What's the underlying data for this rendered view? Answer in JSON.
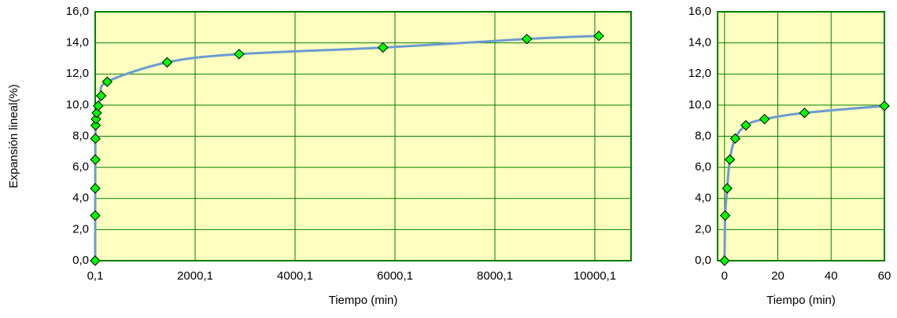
{
  "chart_data": [
    {
      "type": "line",
      "x_label": "Tiempo (min)",
      "y_label": "Expansión lineal(%)",
      "x": [
        0,
        0.25,
        1,
        2,
        4,
        8,
        15,
        30,
        60,
        120,
        240,
        1440,
        2880,
        5760,
        8640,
        10080
      ],
      "series": [
        {
          "color": "#6b9bd1",
          "marker_color": "#00ff00",
          "values": [
            0,
            2.9,
            4.65,
            6.5,
            7.85,
            8.7,
            9.1,
            9.5,
            9.95,
            10.6,
            11.5,
            12.75,
            13.28,
            13.7,
            14.25,
            14.45
          ]
        }
      ],
      "xlim": [
        0.1,
        10725
      ],
      "xticks": [
        {
          "value": 0.1,
          "label": "0,1"
        },
        {
          "value": 2000.1,
          "label": "2000,1"
        },
        {
          "value": 4000.1,
          "label": "4000,1"
        },
        {
          "value": 6000.1,
          "label": "6000,1"
        },
        {
          "value": 8000.1,
          "label": "8000,1"
        },
        {
          "value": 10000.1,
          "label": "10000,1"
        }
      ],
      "ylim": [
        0,
        16
      ],
      "yticks": [
        {
          "value": 0,
          "label": "0,0"
        },
        {
          "value": 2,
          "label": "2,0"
        },
        {
          "value": 4,
          "label": "4,0"
        },
        {
          "value": 6,
          "label": "6,0"
        },
        {
          "value": 8,
          "label": "8,0"
        },
        {
          "value": 10,
          "label": "10,0"
        },
        {
          "value": 12,
          "label": "12,0"
        },
        {
          "value": 14,
          "label": "14,0"
        },
        {
          "value": 16,
          "label": "16,0"
        }
      ],
      "grid": true
    },
    {
      "type": "line",
      "x_label": "Tiempo (min)",
      "x": [
        0,
        0.25,
        1,
        2,
        4,
        8,
        15,
        30,
        60
      ],
      "series": [
        {
          "color": "#6b9bd1",
          "marker_color": "#00ff00",
          "values": [
            0,
            2.9,
            4.65,
            6.5,
            7.85,
            8.7,
            9.1,
            9.5,
            9.95
          ]
        }
      ],
      "xlim": [
        -2.6,
        60
      ],
      "xticks": [
        0,
        20,
        40,
        60
      ],
      "ylim": [
        0,
        16
      ],
      "yticks": [
        {
          "value": 0,
          "label": "0,0"
        },
        {
          "value": 2,
          "label": "2,0"
        },
        {
          "value": 4,
          "label": "4,0"
        },
        {
          "value": 6,
          "label": "6,0"
        },
        {
          "value": 8,
          "label": "8,0"
        },
        {
          "value": 10,
          "label": "10,0"
        },
        {
          "value": 12,
          "label": "12,0"
        },
        {
          "value": 14,
          "label": "14,0"
        },
        {
          "value": 16,
          "label": "16,0"
        }
      ],
      "grid": true
    }
  ]
}
